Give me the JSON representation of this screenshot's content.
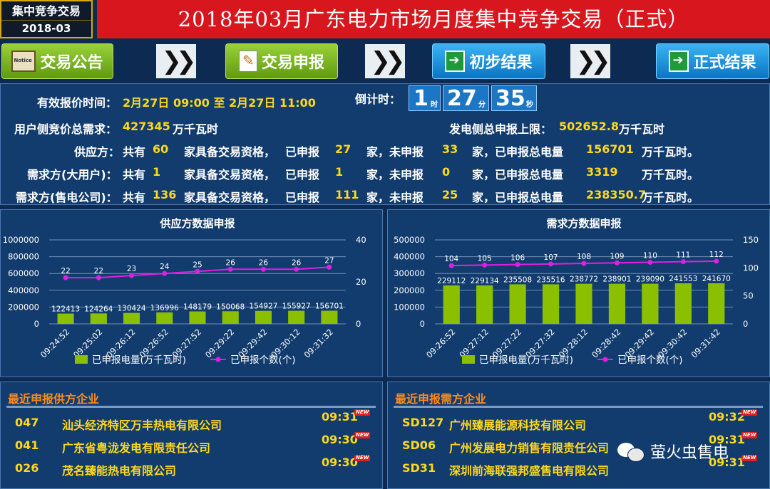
{
  "header": {
    "badge_line1": "集中竞争交易",
    "badge_line2": "2018-03",
    "title": "2018年03月广东电力市场月度集中竞争交易（正式）"
  },
  "nav": {
    "items": [
      {
        "label": "交易公告",
        "icon": "notice-icon",
        "color": "#7cbf1e"
      },
      {
        "label": "交易申报",
        "icon": "form-icon",
        "color": "#7cbf1e"
      },
      {
        "label": "初步结果",
        "icon": "result-icon",
        "color": "#1a8fe0"
      },
      {
        "label": "正式结果",
        "icon": "result-icon",
        "color": "#1a8fe0"
      }
    ],
    "separator_icon": "double-chevron-right-icon"
  },
  "info": {
    "valid_time_label": "有效报价时间：",
    "valid_time_value": "2月27日 09:00 至 2月27日 11:00",
    "countdown_label": "倒计时：",
    "countdown": {
      "hours": "1",
      "hours_unit": "时",
      "minutes": "27",
      "minutes_unit": "分",
      "seconds": "35",
      "seconds_unit": "秒"
    },
    "demand_label": "用户侧竞价总需求：",
    "demand_value": "427345",
    "demand_unit": "万千瓦时",
    "supply_cap_label": "发电侧总申报上限：",
    "supply_cap_value": "502652.8",
    "supply_cap_unit": "万千瓦时",
    "rows": [
      {
        "party": "供应方：",
        "total": "60",
        "reported": "27",
        "unreported": "33",
        "volume": "156701"
      },
      {
        "party": "需求方(大用户)：",
        "total": "1",
        "reported": "1",
        "unreported": "0",
        "volume": "3319"
      },
      {
        "party": "需求方(售电公司)：",
        "total": "136",
        "reported": "111",
        "unreported": "25",
        "volume": "238350.7"
      }
    ],
    "t_gong": "共有",
    "t_qualified": "家具备交易资格，",
    "t_reported": "已申报",
    "t_jia_unrep": "家，未申报",
    "t_jia_total": "家，已申报总电量",
    "t_unit": "万千瓦时。"
  },
  "charts": {
    "supply_title": "供应方数据申报",
    "demand_title": "需求方数据申报",
    "legend_bar": "已申报电量(万千瓦时)",
    "legend_line": "已申报个数(个)",
    "bar_color": "#8ac000",
    "line_color": "#e020e0"
  },
  "chart_data": [
    {
      "type": "bar",
      "title": "供应方数据申报",
      "categories": [
        "09:24:52",
        "09:25:02",
        "09:26:12",
        "09:26:52",
        "09:27:52",
        "09:29:22",
        "09:29:42",
        "09:30:12",
        "09:31:32"
      ],
      "series": [
        {
          "name": "已申报电量(万千瓦时)",
          "type": "bar",
          "axis": "left",
          "values": [
            122413,
            124264,
            130424,
            136996,
            148179,
            150068,
            154927,
            155927,
            156701
          ]
        },
        {
          "name": "已申报个数(个)",
          "type": "line",
          "axis": "right",
          "values": [
            22,
            22,
            23,
            24,
            25,
            26,
            26,
            26,
            27
          ]
        }
      ],
      "yticks": [
        "0",
        "200000",
        "400000",
        "600000",
        "800000",
        "1000000"
      ],
      "y2ticks": [
        "0",
        "20",
        "40"
      ],
      "ylim": [
        0,
        1000000
      ],
      "y2lim": [
        0,
        40
      ],
      "grid": true,
      "legend": "bottom"
    },
    {
      "type": "bar",
      "title": "需求方数据申报",
      "categories": [
        "09:26:52",
        "09:27:12",
        "09:27:22",
        "09:27:32",
        "09:28:12",
        "09:28:42",
        "09:29:42",
        "09:30:42",
        "09:31:42"
      ],
      "series": [
        {
          "name": "已申报电量(万千瓦时)",
          "type": "bar",
          "axis": "left",
          "values": [
            229112,
            229134,
            235508,
            235516,
            238772,
            238901,
            239090,
            241553,
            241670
          ]
        },
        {
          "name": "已申报个数(个)",
          "type": "line",
          "axis": "right",
          "values": [
            104,
            105,
            106,
            107,
            108,
            109,
            110,
            111,
            112
          ]
        }
      ],
      "yticks": [
        "0",
        "100000",
        "200000",
        "300000",
        "400000",
        "500000"
      ],
      "y2ticks": [
        "0",
        "50",
        "100",
        "150"
      ],
      "ylim": [
        0,
        500000
      ],
      "y2lim": [
        0,
        150
      ],
      "grid": true,
      "legend": "bottom"
    }
  ],
  "lists": {
    "supply_title": "最近申报供方企业",
    "demand_title": "最近申报需方企业",
    "new_tag": "NEW",
    "supply": [
      {
        "code": "047",
        "name": "汕头经济特区万丰热电有限公司",
        "time": "09:31"
      },
      {
        "code": "041",
        "name": "广东省粤泷发电有限责任公司",
        "time": "09:30"
      },
      {
        "code": "026",
        "name": "茂名臻能热电有限公司",
        "time": "09:30"
      }
    ],
    "demand": [
      {
        "code": "SD127",
        "name": "广州臻展能源科技有限公司",
        "time": "09:32"
      },
      {
        "code": "SD06",
        "name": "广州发展电力销售有限责任公司",
        "time": "09:31"
      },
      {
        "code": "SD31",
        "name": "深圳前海联强邦盛售电有限公司",
        "time": "09:31"
      }
    ]
  },
  "watermark": {
    "text": "萤火虫售电",
    "icon": "wechat-icon"
  }
}
